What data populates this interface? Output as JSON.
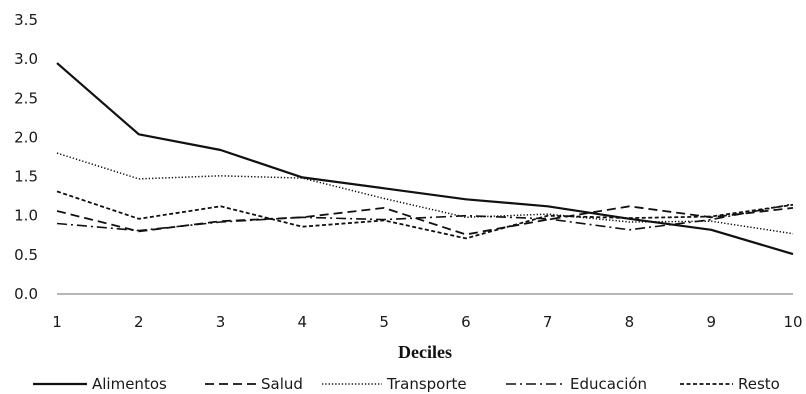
{
  "chart_data": {
    "type": "line",
    "title": "",
    "xlabel": "Deciles",
    "ylabel": "",
    "x": [
      1,
      2,
      3,
      4,
      5,
      6,
      7,
      8,
      9,
      10
    ],
    "ylim": [
      0,
      3.5
    ],
    "yticks": [
      "0.0",
      "0.5",
      "1.0",
      "1.5",
      "2.0",
      "2.5",
      "3.0",
      "3.5"
    ],
    "xticks": [
      "1",
      "2",
      "3",
      "4",
      "5",
      "6",
      "7",
      "8",
      "9",
      "10"
    ],
    "grid": false,
    "legend_position": "bottom",
    "series": [
      {
        "name": "Alimentos",
        "style": "solid",
        "values": [
          2.95,
          2.04,
          1.84,
          1.49,
          1.35,
          1.21,
          1.12,
          0.96,
          0.82,
          0.51
        ]
      },
      {
        "name": "Salud",
        "style": "dashed",
        "values": [
          1.06,
          0.8,
          0.93,
          0.98,
          1.1,
          0.76,
          0.95,
          1.12,
          0.98,
          1.1
        ]
      },
      {
        "name": "Transporte",
        "style": "dotted",
        "values": [
          1.8,
          1.47,
          1.51,
          1.48,
          1.22,
          0.98,
          1.02,
          0.92,
          0.93,
          0.77
        ]
      },
      {
        "name": "Educación",
        "style": "dashdot",
        "values": [
          0.9,
          0.81,
          0.92,
          0.98,
          0.95,
          1.0,
          0.96,
          0.82,
          0.95,
          1.15
        ]
      },
      {
        "name": "Resto",
        "style": "shortdash",
        "values": [
          1.31,
          0.96,
          1.12,
          0.86,
          0.94,
          0.71,
          1.0,
          0.97,
          0.99,
          1.14
        ]
      }
    ]
  }
}
